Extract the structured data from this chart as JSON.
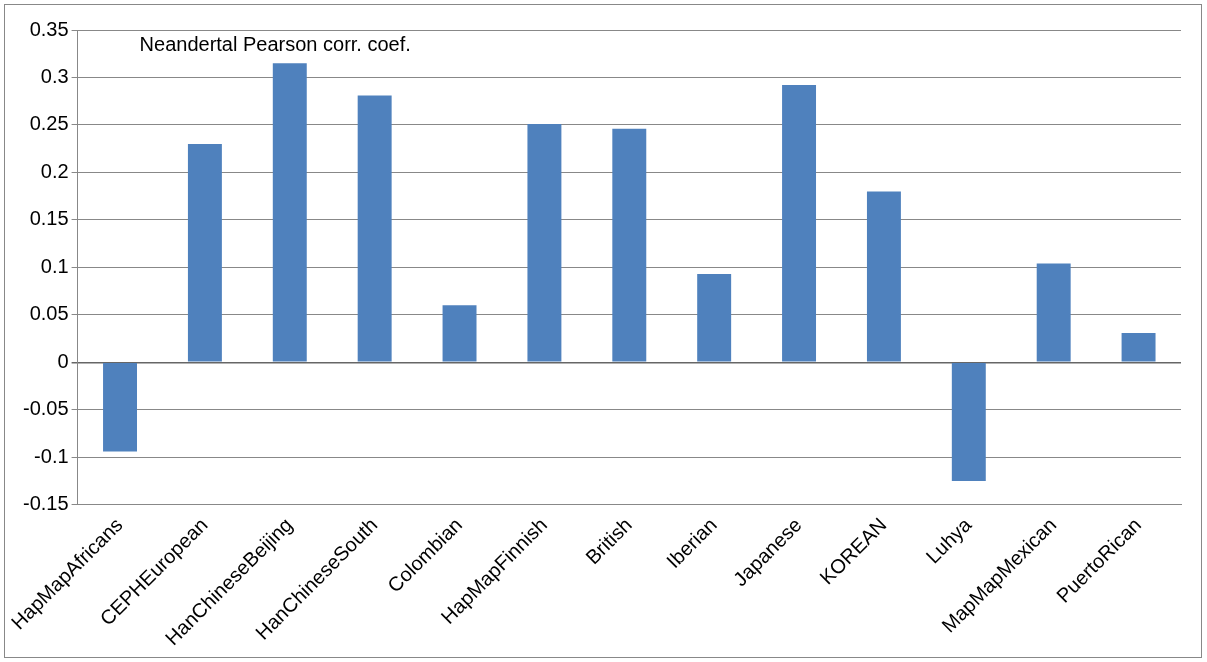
{
  "chart_data": {
    "type": "bar",
    "title": "Neandertal Pearson corr. coef.",
    "categories": [
      "HapMapAfricans",
      "CEPHEuropean",
      "HanChineseBeijing",
      "HanChineseSouth",
      "Colombian",
      "HapMapFinnish",
      "British",
      "Iberian",
      "Japanese",
      "KOREAN",
      "Luhya",
      "MapMapMexican",
      "PuertoRican"
    ],
    "values": [
      -0.094,
      0.23,
      0.315,
      0.281,
      0.06,
      0.251,
      0.246,
      0.093,
      0.292,
      0.18,
      -0.125,
      0.104,
      0.031
    ],
    "color": "#4f81bd",
    "ylim": [
      -0.15,
      0.35
    ],
    "yticks": [
      -0.15,
      -0.1,
      -0.05,
      0,
      0.05,
      0.1,
      0.15,
      0.2,
      0.25,
      0.3,
      0.35
    ],
    "grid": "y",
    "legend": false
  }
}
